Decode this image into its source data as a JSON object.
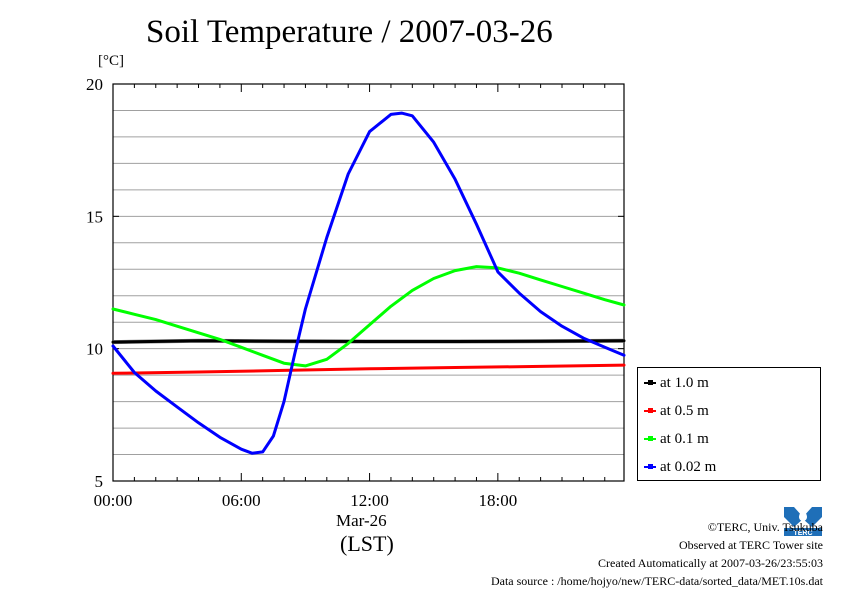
{
  "chart_data": {
    "type": "line",
    "title": "Soil Temperature / 2007-03-26",
    "ylabel": "[°C]",
    "xlabel": "Mar-26",
    "xlabel2": "(LST)",
    "ylim": [
      5,
      20
    ],
    "y_ticks": [
      "5",
      "10",
      "15",
      "20"
    ],
    "xlim_hours": [
      0,
      23.9
    ],
    "x_ticks": [
      {
        "hour": 0,
        "label": "00:00"
      },
      {
        "hour": 6,
        "label": "06:00"
      },
      {
        "hour": 12,
        "label": "12:00"
      },
      {
        "hour": 18,
        "label": "18:00"
      }
    ],
    "grid": true,
    "legend_position": "right",
    "series": [
      {
        "name": "at 1.0 m",
        "color": "#000000",
        "x": [
          0,
          4,
          8,
          12,
          16,
          20,
          23.9
        ],
        "y": [
          10.25,
          10.3,
          10.28,
          10.27,
          10.27,
          10.28,
          10.3
        ]
      },
      {
        "name": "at 0.5 m",
        "color": "#ff0000",
        "x": [
          0,
          4,
          8,
          12,
          16,
          20,
          23.9
        ],
        "y": [
          9.07,
          9.12,
          9.18,
          9.24,
          9.29,
          9.33,
          9.38
        ]
      },
      {
        "name": "at 0.1 m",
        "color": "#00ff00",
        "x": [
          0,
          1,
          2,
          3,
          4,
          5,
          6,
          7,
          8,
          9,
          10,
          11,
          12,
          13,
          14,
          15,
          16,
          17,
          18,
          19,
          20,
          21,
          22,
          23,
          23.9
        ],
        "y": [
          11.5,
          11.3,
          11.1,
          10.85,
          10.6,
          10.35,
          10.05,
          9.75,
          9.45,
          9.35,
          9.6,
          10.2,
          10.9,
          11.6,
          12.2,
          12.65,
          12.95,
          13.1,
          13.05,
          12.85,
          12.6,
          12.35,
          12.1,
          11.85,
          11.65
        ]
      },
      {
        "name": "at 0.02 m",
        "color": "#0000ff",
        "x": [
          0,
          1,
          2,
          3,
          4,
          5,
          6,
          6.5,
          7,
          7.5,
          8,
          8.5,
          9,
          10,
          11,
          12,
          13,
          13.5,
          14,
          15,
          16,
          17,
          18,
          19,
          20,
          21,
          22,
          23,
          23.9
        ],
        "y": [
          10.1,
          9.1,
          8.4,
          7.8,
          7.2,
          6.65,
          6.2,
          6.05,
          6.1,
          6.7,
          8.0,
          9.8,
          11.5,
          14.2,
          16.6,
          18.2,
          18.85,
          18.9,
          18.8,
          17.8,
          16.4,
          14.7,
          12.9,
          12.1,
          11.4,
          10.85,
          10.4,
          10.05,
          9.75
        ]
      }
    ]
  },
  "footer": {
    "copyright": "©TERC, Univ. Tsukuba",
    "observed": "Observed at TERC Tower site",
    "created": "Created Automatically at 2007-03-26/23:55:03",
    "source": "Data source : /home/hojyo/new/TERC-data/sorted_data/MET.10s.dat"
  },
  "logo": {
    "text": "TERC",
    "icon": "terc-logo-icon",
    "color": "#1f6fb8"
  }
}
